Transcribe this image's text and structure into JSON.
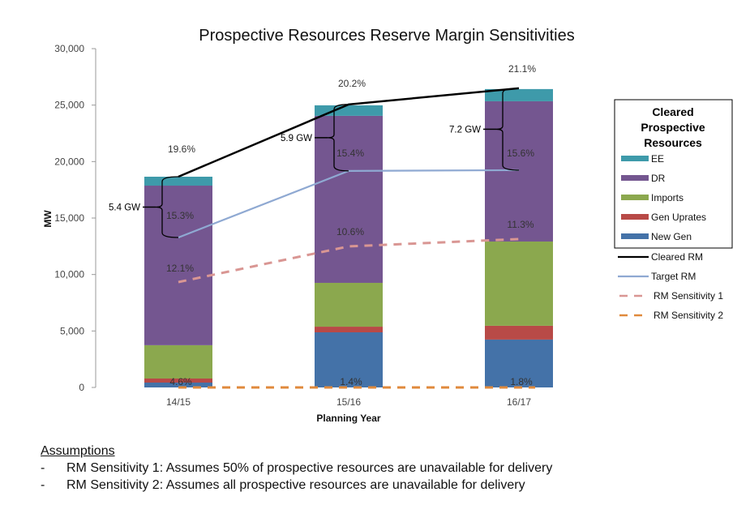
{
  "chart_data": {
    "type": "bar",
    "stacked": true,
    "title": "Prospective Resources Reserve Margin Sensitivities",
    "xlabel": "Planning Year",
    "ylabel": "MW",
    "ylim": [
      0,
      30000
    ],
    "yticks": [
      0,
      5000,
      10000,
      15000,
      20000,
      25000,
      30000
    ],
    "ytick_labels": [
      "0",
      "5,000",
      "10,000",
      "15,000",
      "20,000",
      "25,000",
      "30,000"
    ],
    "grid": false,
    "categories": [
      "14/15",
      "15/16",
      "16/17"
    ],
    "series": [
      {
        "name": "New Gen",
        "color": "#4472a8",
        "values": [
          430,
          4880,
          4240
        ]
      },
      {
        "name": "Gen Uprates",
        "color": "#b84a47",
        "values": [
          360,
          500,
          1220
        ]
      },
      {
        "name": "Imports",
        "color": "#8ba84e",
        "values": [
          2950,
          3880,
          7460
        ]
      },
      {
        "name": "DR",
        "color": "#745690",
        "values": [
          14130,
          14790,
          12420
        ]
      },
      {
        "name": "EE",
        "color": "#3e9aaa",
        "values": [
          790,
          930,
          1080
        ]
      }
    ],
    "lines": [
      {
        "name": "Cleared RM",
        "color": "#000000",
        "style": "solid",
        "values": [
          18660,
          25060,
          26490
        ],
        "labels": [
          "19.6%",
          "20.2%",
          "21.1%"
        ]
      },
      {
        "name": "Target RM",
        "color": "#8fa9d2",
        "style": "solid",
        "values": [
          13280,
          19170,
          19240
        ],
        "labels": [
          "15.3%",
          "15.4%",
          "15.6%"
        ]
      },
      {
        "name": "RM Sensitivity 1",
        "color": "#d99693",
        "style": "dashed",
        "values": [
          9330,
          12490,
          13140
        ],
        "labels": [
          "12.1%",
          "10.6%",
          "11.3%"
        ]
      },
      {
        "name": "RM Sensitivity 2",
        "color": "#e08a3c",
        "style": "dashed",
        "values": [
          0,
          0,
          0
        ],
        "labels": [
          "4.6%",
          "1.4%",
          "1.8%"
        ]
      }
    ],
    "brackets": [
      "5.4 GW",
      "5.9 GW",
      "7.2 GW"
    ],
    "legend": {
      "position": "right",
      "title": "Cleared Prospective Resources",
      "title_lines": [
        "Cleared",
        "Prospective",
        "Resources"
      ],
      "bar_entries": [
        "EE",
        "DR",
        "Imports",
        "Gen Uprates",
        "New Gen"
      ],
      "line_entries": [
        "Cleared RM",
        "Target RM",
        "RM Sensitivity 1",
        "RM Sensitivity 2"
      ]
    }
  },
  "assumptions": {
    "heading": "Assumptions",
    "items": [
      {
        "bullet": "-",
        "text": "RM Sensitivity 1: Assumes 50% of prospective resources are unavailable for delivery"
      },
      {
        "bullet": "-",
        "text": "RM Sensitivity 2: Assumes all prospective resources are unavailable for delivery"
      }
    ]
  }
}
